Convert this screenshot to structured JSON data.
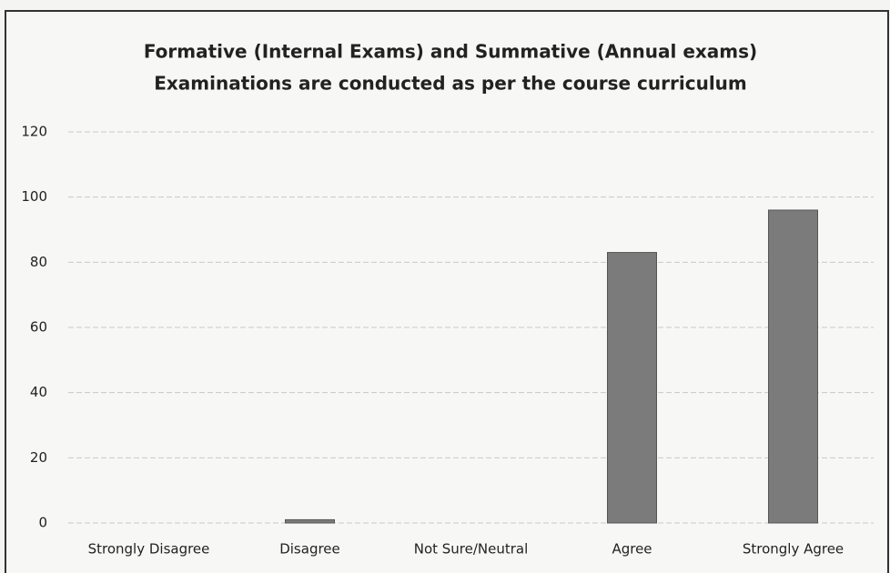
{
  "chart_data": {
    "type": "bar",
    "title": [
      "Formative (Internal Exams) and Summative (Annual exams)",
      "Examinations are conducted as per the course curriculum"
    ],
    "categories": [
      "Strongly Disagree",
      "Disagree",
      "Not Sure/Neutral",
      "Agree",
      "Strongly Agree"
    ],
    "values": [
      0,
      1,
      0,
      83,
      96
    ],
    "color": "#7b7b7b",
    "ylim": [
      0,
      120
    ],
    "yticks": [
      0,
      20,
      40,
      60,
      80,
      100,
      120
    ],
    "grid": true
  }
}
